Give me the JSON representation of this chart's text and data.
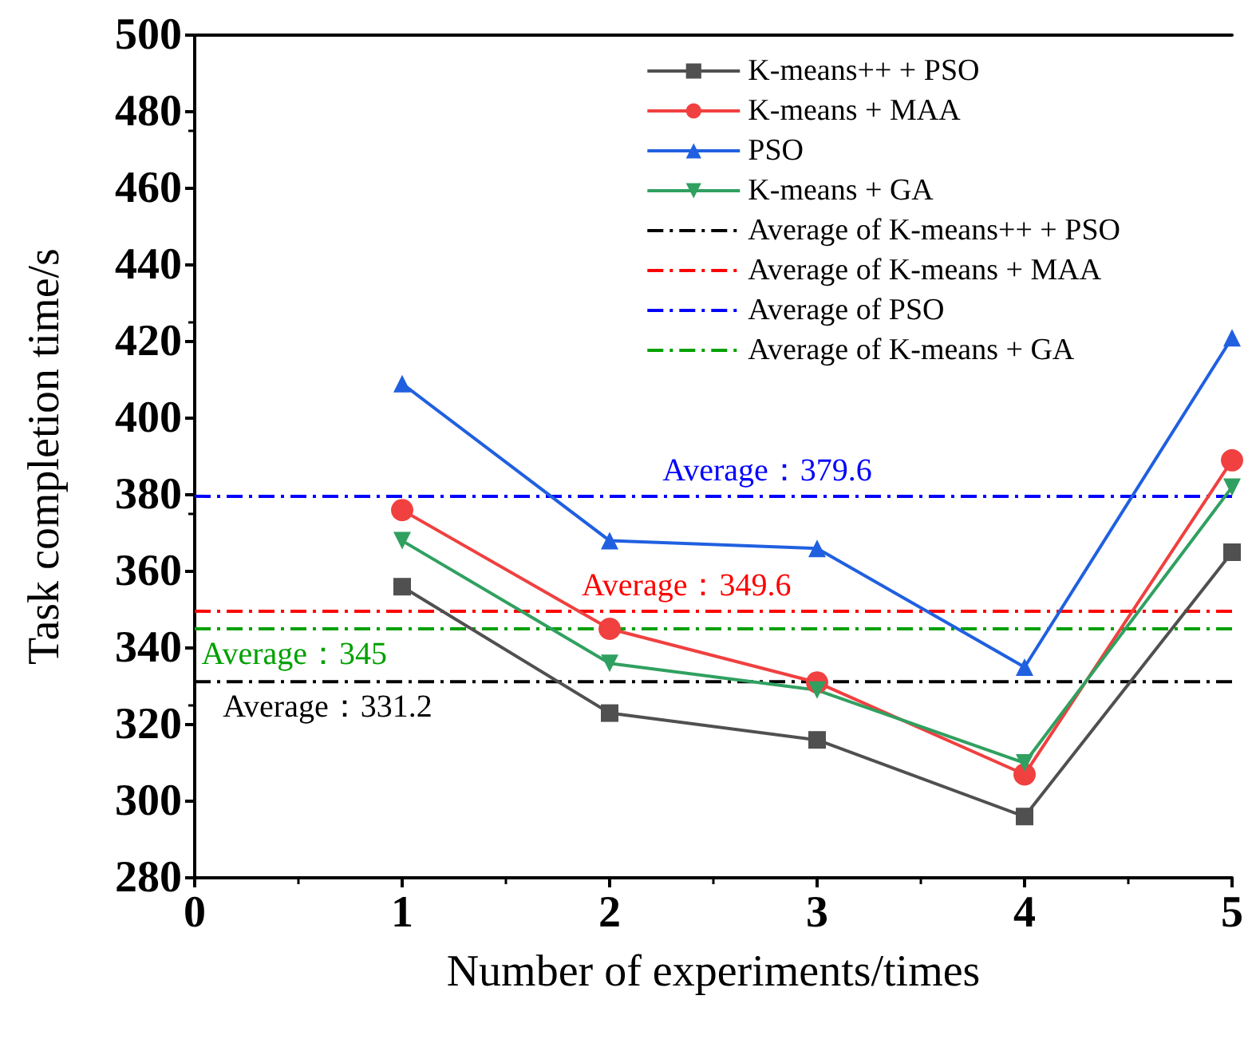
{
  "chart_data": {
    "type": "line",
    "xlabel": "Number of experiments/times",
    "ylabel": "Task completion time/s",
    "x": [
      1,
      2,
      3,
      4,
      5
    ],
    "series": [
      {
        "name": "K-means++ + PSO",
        "color": "#505050",
        "values": [
          356,
          323,
          316,
          296,
          365
        ],
        "marker": "square"
      },
      {
        "name": "K-means + MAA",
        "color": "#f04040",
        "values": [
          376,
          345,
          331,
          307,
          389
        ],
        "marker": "circle"
      },
      {
        "name": "PSO",
        "color": "#2060e0",
        "values": [
          409,
          368,
          366,
          335,
          421
        ],
        "marker": "triangle"
      },
      {
        "name": "K-means + GA",
        "color": "#30a060",
        "values": [
          368,
          336,
          329,
          310,
          382
        ],
        "marker": "triangle-down"
      }
    ],
    "ref_lines": [
      {
        "axis": "y",
        "value": 331.2,
        "label": "Average of K-means++ + PSO",
        "color": "#000000",
        "line_style": "dashdot"
      },
      {
        "axis": "y",
        "value": 349.6,
        "label": "Average of K-means + MAA",
        "color": "#ff0000",
        "line_style": "dashdot"
      },
      {
        "axis": "y",
        "value": 379.6,
        "label": "Average of PSO",
        "color": "#0000ff",
        "line_style": "dashdot"
      },
      {
        "axis": "y",
        "value": 345,
        "label": "Average of K-means + GA",
        "color": "#00a000",
        "line_style": "dashdot"
      }
    ],
    "annotations": [
      {
        "text": "Average：379.6",
        "x": 2.76,
        "y": 379.6
      },
      {
        "text": "Average：349.6",
        "x": 2.37,
        "y": 349.6
      },
      {
        "text": "Average：345",
        "x": 0.48,
        "y": 345
      },
      {
        "text": "Average：331.2",
        "x": 0.64,
        "y": 331.2
      }
    ],
    "xlim": [
      0,
      5
    ],
    "xticks": [
      0,
      1,
      2,
      3,
      4,
      5
    ],
    "ylim": [
      280,
      500
    ],
    "yticks": [
      280,
      300,
      320,
      340,
      360,
      380,
      400,
      420,
      440,
      460,
      480,
      500
    ],
    "grid": false,
    "legend": "top right"
  }
}
